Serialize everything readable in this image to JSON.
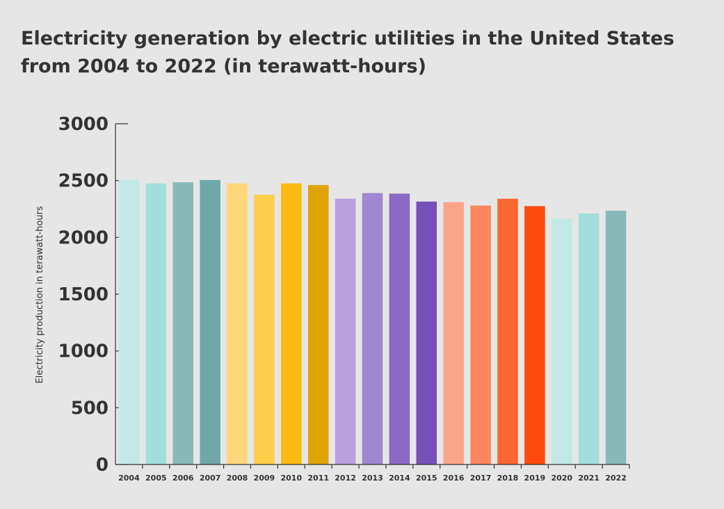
{
  "chart_data": {
    "type": "bar",
    "title": "Electricity generation by electric utilities in the United States from 2004 to 2022 (in terawatt-hours)",
    "xlabel": "",
    "ylabel": "Electricity production in terawatt-hours",
    "ylim": [
      0,
      3000
    ],
    "yticks": [
      "0",
      "500",
      "1000",
      "1500",
      "2000",
      "2500",
      "3000"
    ],
    "categories": [
      "2004",
      "2005",
      "2006",
      "2007",
      "2008",
      "2009",
      "2010",
      "2011",
      "2012",
      "2013",
      "2014",
      "2015",
      "2016",
      "2017",
      "2018",
      "2019",
      "2020",
      "2021",
      "2022"
    ],
    "values": [
      2505,
      2475,
      2485,
      2505,
      2475,
      2375,
      2475,
      2460,
      2340,
      2390,
      2385,
      2315,
      2310,
      2280,
      2340,
      2275,
      2165,
      2210,
      2235
    ],
    "colors": [
      "#c2e8e6",
      "#a1dfda",
      "#87b9b8",
      "#6fa8a6",
      "#fdd77a",
      "#fdce4a",
      "#fbb911",
      "#e0a400",
      "#b8a1dd",
      "#a187d1",
      "#8a6ac3",
      "#7650b6",
      "#fca488",
      "#fd8660",
      "#fd6730",
      "#fd4a0d",
      "#c2e8e6",
      "#a1dfda",
      "#87b9b8"
    ],
    "grid": false,
    "legend": "none"
  }
}
